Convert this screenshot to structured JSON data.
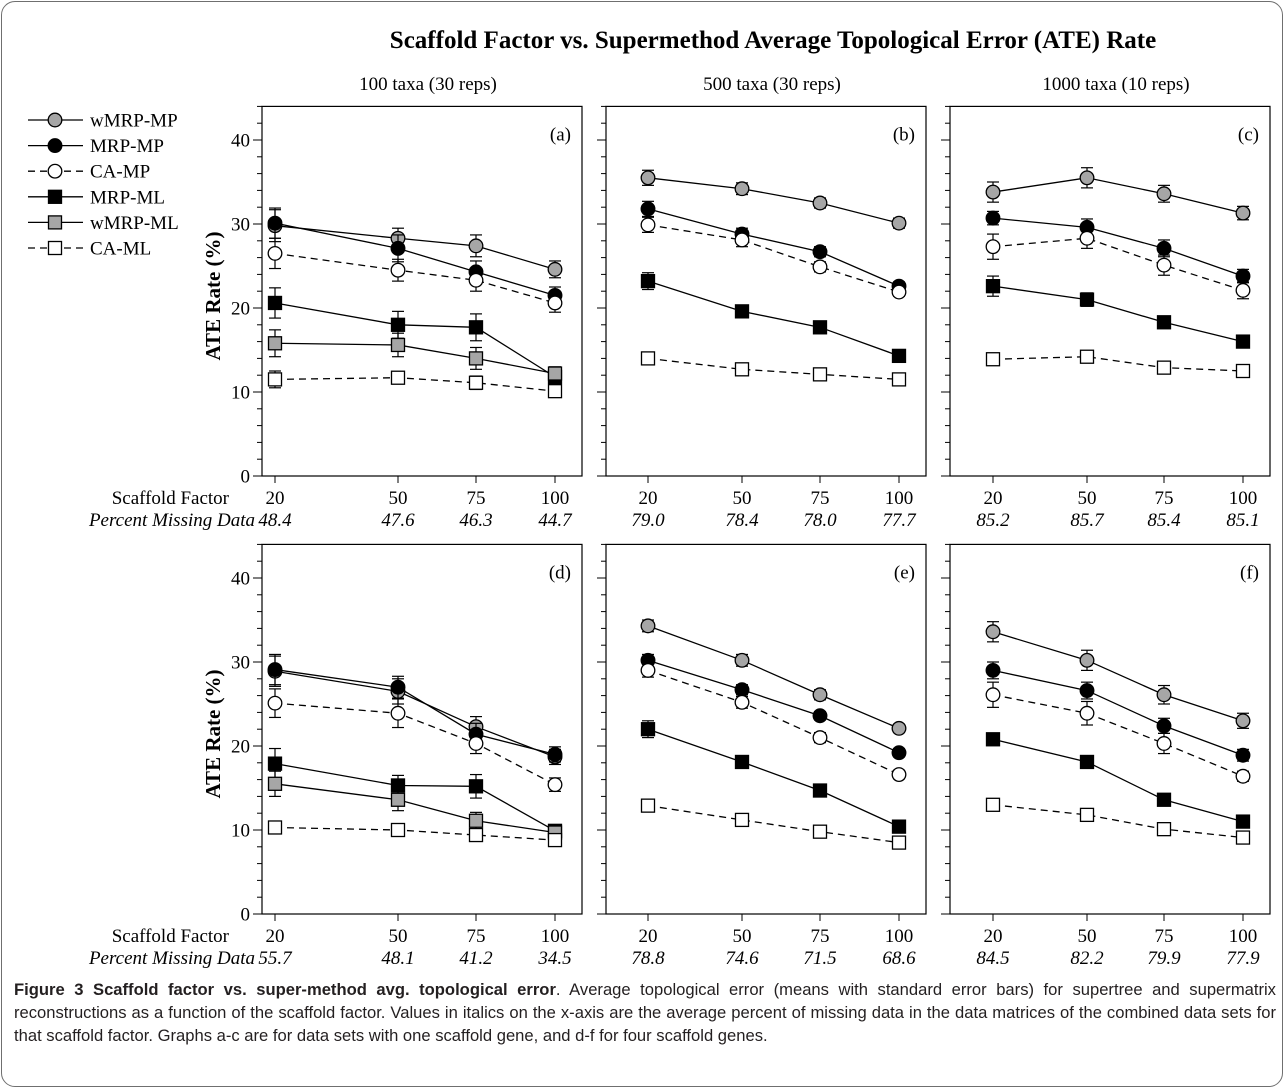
{
  "figure": {
    "title": "Scaffold Factor vs. Supermethod Average Topological Error (ATE) Rate"
  },
  "legend": [
    {
      "name": "wMRP-MP",
      "marker": "circle",
      "fill": "#a6a6a6",
      "dashed": false
    },
    {
      "name": "MRP-MP",
      "marker": "circle",
      "fill": "#000000",
      "dashed": false
    },
    {
      "name": "CA-MP",
      "marker": "circle",
      "fill": "#ffffff",
      "dashed": true
    },
    {
      "name": "MRP-ML",
      "marker": "square",
      "fill": "#000000",
      "dashed": false
    },
    {
      "name": "wMRP-ML",
      "marker": "square",
      "fill": "#a6a6a6",
      "dashed": false
    },
    {
      "name": "CA-ML",
      "marker": "square",
      "fill": "#ffffff",
      "dashed": true
    }
  ],
  "chart_data": [
    {
      "panel": "(a)",
      "type": "line",
      "title": "100 taxa (30 reps)",
      "xlabel": "Scaffold Factor",
      "x2label": "Percent Missing Data",
      "ylabel": "ATE Rate (%)",
      "x": [
        20,
        50,
        75,
        100
      ],
      "percent_missing": [
        "48.4",
        "47.6",
        "46.3",
        "44.7"
      ],
      "ylim": [
        0,
        44
      ],
      "yticks": [
        0,
        10,
        20,
        30,
        40
      ],
      "series": [
        {
          "name": "wMRP-MP",
          "values": [
            29.8,
            28.3,
            27.4,
            24.6
          ],
          "errors": [
            1.9,
            1.2,
            1.3,
            1.0
          ]
        },
        {
          "name": "MRP-MP",
          "values": [
            30.1,
            27.1,
            24.3,
            21.5
          ],
          "errors": [
            1.8,
            1.6,
            1.3,
            1.0
          ]
        },
        {
          "name": "CA-MP",
          "values": [
            26.5,
            24.5,
            23.3,
            20.6
          ],
          "errors": [
            1.8,
            1.3,
            1.3,
            1.1
          ]
        },
        {
          "name": "MRP-ML",
          "values": [
            20.6,
            18.0,
            17.7,
            11.8
          ],
          "errors": [
            1.8,
            1.6,
            1.6,
            0.9
          ]
        },
        {
          "name": "wMRP-ML",
          "values": [
            15.8,
            15.6,
            14.0,
            12.2
          ],
          "errors": [
            1.6,
            1.4,
            1.3,
            0.8
          ]
        },
        {
          "name": "CA-ML",
          "values": [
            11.5,
            11.7,
            11.1,
            10.1
          ],
          "errors": [
            1.0,
            0.7,
            0.8,
            0.7
          ]
        }
      ]
    },
    {
      "panel": "(b)",
      "type": "line",
      "title": "500 taxa (30 reps)",
      "x": [
        20,
        50,
        75,
        100
      ],
      "percent_missing": [
        "79.0",
        "78.4",
        "78.0",
        "77.7"
      ],
      "ylim": [
        0,
        44
      ],
      "series": [
        {
          "name": "wMRP-MP",
          "values": [
            35.5,
            34.2,
            32.5,
            30.1
          ],
          "errors": [
            0.9,
            0.7,
            0.6,
            0.6
          ]
        },
        {
          "name": "MRP-MP",
          "values": [
            31.8,
            28.8,
            26.7,
            22.6
          ],
          "errors": [
            0.9,
            0.7,
            0.6,
            0.5
          ]
        },
        {
          "name": "CA-MP",
          "values": [
            29.9,
            28.1,
            24.9,
            21.9
          ],
          "errors": [
            0.9,
            0.8,
            0.6,
            0.5
          ]
        },
        {
          "name": "MRP-ML",
          "values": [
            23.2,
            19.6,
            17.7,
            14.3
          ],
          "errors": [
            1.0,
            0.5,
            0.5,
            0.5
          ]
        },
        {
          "name": "CA-ML",
          "values": [
            14.0,
            12.7,
            12.1,
            11.5
          ],
          "errors": [
            0.4,
            0.4,
            0.4,
            0.4
          ]
        }
      ]
    },
    {
      "panel": "(c)",
      "type": "line",
      "title": "1000 taxa (10 reps)",
      "x": [
        20,
        50,
        75,
        100
      ],
      "percent_missing": [
        "85.2",
        "85.7",
        "85.4",
        "85.1"
      ],
      "ylim": [
        0,
        44
      ],
      "series": [
        {
          "name": "wMRP-MP",
          "values": [
            33.8,
            35.5,
            33.6,
            31.3
          ],
          "errors": [
            1.2,
            1.2,
            1.0,
            0.8
          ]
        },
        {
          "name": "MRP-MP",
          "values": [
            30.7,
            29.6,
            27.1,
            23.8
          ],
          "errors": [
            0.8,
            1.0,
            1.0,
            0.8
          ]
        },
        {
          "name": "CA-MP",
          "values": [
            27.3,
            28.3,
            25.1,
            22.1
          ],
          "errors": [
            1.5,
            1.2,
            1.2,
            1.0
          ]
        },
        {
          "name": "MRP-ML",
          "values": [
            22.6,
            21.0,
            18.3,
            16.0
          ],
          "errors": [
            1.2,
            0.8,
            0.7,
            0.6
          ]
        },
        {
          "name": "CA-ML",
          "values": [
            13.9,
            14.2,
            12.9,
            12.5
          ],
          "errors": [
            0.5,
            0.5,
            0.5,
            0.4
          ]
        }
      ]
    },
    {
      "panel": "(d)",
      "type": "line",
      "xlabel": "Scaffold Factor",
      "x2label": "Percent Missing Data",
      "ylabel": "ATE Rate (%)",
      "x": [
        20,
        50,
        75,
        100
      ],
      "percent_missing": [
        "55.7",
        "48.1",
        "41.2",
        "34.5"
      ],
      "ylim": [
        0,
        44
      ],
      "yticks": [
        0,
        10,
        20,
        30,
        40
      ],
      "series": [
        {
          "name": "wMRP-MP",
          "values": [
            28.9,
            26.5,
            22.3,
            18.7
          ],
          "errors": [
            1.8,
            1.5,
            1.2,
            0.9
          ]
        },
        {
          "name": "MRP-MP",
          "values": [
            29.1,
            27.0,
            21.4,
            19.0
          ],
          "errors": [
            1.8,
            1.3,
            1.3,
            0.9
          ]
        },
        {
          "name": "CA-MP",
          "values": [
            25.1,
            23.9,
            20.3,
            15.4
          ],
          "errors": [
            1.7,
            1.7,
            1.2,
            0.8
          ]
        },
        {
          "name": "MRP-ML",
          "values": [
            17.9,
            15.3,
            15.2,
            9.9
          ],
          "errors": [
            1.8,
            1.2,
            1.4,
            0.4
          ]
        },
        {
          "name": "wMRP-ML",
          "values": [
            15.5,
            13.6,
            11.1,
            9.7
          ],
          "errors": [
            1.5,
            1.3,
            1.0,
            0.4
          ]
        },
        {
          "name": "CA-ML",
          "values": [
            10.3,
            10.0,
            9.4,
            8.8
          ],
          "errors": [
            0.6,
            0.5,
            0.5,
            0.4
          ]
        }
      ]
    },
    {
      "panel": "(e)",
      "type": "line",
      "x": [
        20,
        50,
        75,
        100
      ],
      "percent_missing": [
        "78.8",
        "74.6",
        "71.5",
        "68.6"
      ],
      "ylim": [
        0,
        44
      ],
      "series": [
        {
          "name": "wMRP-MP",
          "values": [
            34.3,
            30.2,
            26.1,
            22.1
          ],
          "errors": [
            0.7,
            0.7,
            0.6,
            0.5
          ]
        },
        {
          "name": "MRP-MP",
          "values": [
            30.2,
            26.7,
            23.6,
            19.2
          ],
          "errors": [
            0.7,
            0.6,
            0.5,
            0.5
          ]
        },
        {
          "name": "CA-MP",
          "values": [
            29.0,
            25.2,
            21.0,
            16.6
          ],
          "errors": [
            0.8,
            0.7,
            0.6,
            0.5
          ]
        },
        {
          "name": "MRP-ML",
          "values": [
            22.0,
            18.1,
            14.7,
            10.4
          ],
          "errors": [
            1.0,
            0.5,
            0.5,
            0.5
          ]
        },
        {
          "name": "CA-ML",
          "values": [
            12.9,
            11.2,
            9.8,
            8.5
          ],
          "errors": [
            0.4,
            0.4,
            0.4,
            0.4
          ]
        }
      ]
    },
    {
      "panel": "(f)",
      "type": "line",
      "x": [
        20,
        50,
        75,
        100
      ],
      "percent_missing": [
        "84.5",
        "82.2",
        "79.9",
        "77.9"
      ],
      "ylim": [
        0,
        44
      ],
      "series": [
        {
          "name": "wMRP-MP",
          "values": [
            33.6,
            30.2,
            26.1,
            23.0
          ],
          "errors": [
            1.2,
            1.2,
            1.1,
            0.9
          ]
        },
        {
          "name": "MRP-MP",
          "values": [
            29.0,
            26.6,
            22.4,
            18.9
          ],
          "errors": [
            1.0,
            1.0,
            0.9,
            0.7
          ]
        },
        {
          "name": "CA-MP",
          "values": [
            26.1,
            23.9,
            20.3,
            16.4
          ],
          "errors": [
            1.5,
            1.4,
            1.2,
            0.6
          ]
        },
        {
          "name": "MRP-ML",
          "values": [
            20.8,
            18.1,
            13.6,
            11.0
          ],
          "errors": [
            0.5,
            0.5,
            0.5,
            0.5
          ]
        },
        {
          "name": "CA-ML",
          "values": [
            13.0,
            11.8,
            10.1,
            9.1
          ],
          "errors": [
            0.4,
            0.7,
            0.4,
            0.4
          ]
        }
      ]
    }
  ],
  "caption": {
    "heading": "Figure 3 Scaffold factor vs. super-method avg. topological error",
    "body": ". Average topological error (means with standard error bars) for supertree and supermatrix reconstructions as a function of the scaffold factor. Values in italics on the x-axis are the average percent of missing data in the data matrices of the combined data sets for that scaffold factor. Graphs a-c are for data sets with one scaffold gene, and d-f for four scaffold genes."
  }
}
